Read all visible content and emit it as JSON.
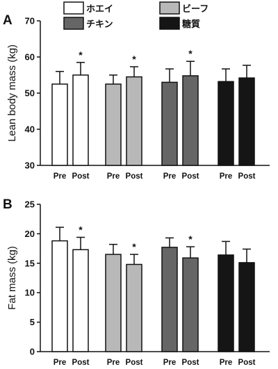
{
  "chart_data": [
    {
      "type": "bar",
      "panel": "A",
      "ylabel": "Lean body mass (kg)",
      "ylim": [
        30,
        70
      ],
      "yticks": [
        30,
        40,
        50,
        60,
        70
      ],
      "groups": [
        "ホエイ",
        "ビーフ",
        "チキン",
        "糖質"
      ],
      "categories": [
        "Pre",
        "Post"
      ],
      "series": [
        {
          "name": "ホエイ",
          "color": "#ffffff",
          "values": [
            52.5,
            55.0
          ],
          "errors": [
            3.5,
            3.5
          ],
          "significant": [
            false,
            true
          ]
        },
        {
          "name": "ビーフ",
          "color": "#b8b8b8",
          "values": [
            52.5,
            54.5
          ],
          "errors": [
            2.5,
            2.8
          ],
          "significant": [
            false,
            true
          ]
        },
        {
          "name": "チキン",
          "color": "#666666",
          "values": [
            53.0,
            54.8
          ],
          "errors": [
            3.7,
            4.0
          ],
          "significant": [
            false,
            true
          ]
        },
        {
          "name": "糖質",
          "color": "#151515",
          "values": [
            53.2,
            54.2
          ],
          "errors": [
            3.5,
            3.5
          ],
          "significant": [
            false,
            false
          ]
        }
      ],
      "legend": {
        "position": "top",
        "entries": [
          "ホエイ",
          "ビーフ",
          "チキン",
          "糖質"
        ]
      },
      "annotation_symbol": "*"
    },
    {
      "type": "bar",
      "panel": "B",
      "ylabel": "Fat mass (kg)",
      "ylim": [
        0,
        25
      ],
      "yticks": [
        0,
        5,
        10,
        15,
        20,
        25
      ],
      "groups": [
        "ホエイ",
        "ビーフ",
        "チキン",
        "糖質"
      ],
      "categories": [
        "Pre",
        "Post"
      ],
      "series": [
        {
          "name": "ホエイ",
          "color": "#ffffff",
          "values": [
            18.8,
            17.3
          ],
          "errors": [
            2.3,
            2.1
          ],
          "significant": [
            false,
            true
          ]
        },
        {
          "name": "ビーフ",
          "color": "#b8b8b8",
          "values": [
            16.5,
            14.8
          ],
          "errors": [
            1.7,
            1.7
          ],
          "significant": [
            false,
            true
          ]
        },
        {
          "name": "チキン",
          "color": "#666666",
          "values": [
            17.7,
            15.9
          ],
          "errors": [
            1.6,
            1.9
          ],
          "significant": [
            false,
            true
          ]
        },
        {
          "name": "糖質",
          "color": "#151515",
          "values": [
            16.4,
            15.1
          ],
          "errors": [
            2.3,
            2.3
          ],
          "significant": [
            false,
            false
          ]
        }
      ],
      "annotation_symbol": "*"
    }
  ]
}
